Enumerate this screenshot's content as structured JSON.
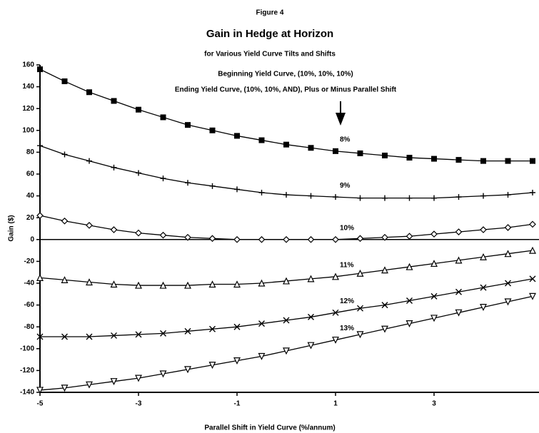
{
  "chart_data": {
    "type": "line",
    "figure_label": "Figure 4",
    "title": "Gain in Hedge at Horizon",
    "subtitle": "for Various Yield Curve Tilts and Shifts",
    "annotations": [
      "Beginning Yield Curve, (10%, 10%, 10%)",
      "Ending Yield Curve, (10%, 10%, AND), Plus or Minus Parallel Shift"
    ],
    "x_label": "Parallel Shift in Yield Curve (%/annum)",
    "y_label": "Gain ($)",
    "x": [
      -5,
      -4.5,
      -4,
      -3.5,
      -3,
      -2.5,
      -2,
      -1.5,
      -1,
      -0.5,
      0,
      0.5,
      1,
      1.5,
      2,
      2.5,
      3,
      3.5,
      4,
      4.5,
      5
    ],
    "xlim": [
      -5,
      5
    ],
    "ylim": [
      -140,
      160
    ],
    "xticks": [
      -5,
      -3,
      -1,
      1,
      3
    ],
    "yticks": [
      -140,
      -120,
      -100,
      -80,
      -60,
      -40,
      -20,
      0,
      20,
      40,
      60,
      80,
      100,
      120,
      140,
      160
    ],
    "series": [
      {
        "name": "8%",
        "color": "#000000",
        "marker": "square",
        "values": [
          156,
          145,
          135,
          127,
          119,
          112,
          105,
          100,
          95,
          91,
          87,
          84,
          81,
          79,
          77,
          75,
          74,
          73,
          72,
          72,
          72
        ]
      },
      {
        "name": "9%",
        "color": "#000000",
        "marker": "plus",
        "values": [
          86,
          78,
          72,
          66,
          61,
          56,
          52,
          49,
          46,
          43,
          41,
          40,
          39,
          38,
          38,
          38,
          38,
          39,
          40,
          41,
          43
        ]
      },
      {
        "name": "10%",
        "color": "#000000",
        "marker": "diamond",
        "values": [
          22,
          17,
          13,
          9,
          6,
          4,
          2,
          1,
          0,
          0,
          0,
          0,
          0,
          1,
          2,
          3,
          5,
          7,
          9,
          11,
          14
        ]
      },
      {
        "name": "11%",
        "color": "#000000",
        "marker": "triangle",
        "values": [
          -35,
          -37,
          -39,
          -41,
          -42,
          -42,
          -42,
          -41,
          -41,
          -40,
          -38,
          -36,
          -34,
          -31,
          -28,
          -25,
          -22,
          -19,
          -16,
          -13,
          -10
        ]
      },
      {
        "name": "12%",
        "color": "#000000",
        "marker": "x",
        "values": [
          -89,
          -89,
          -89,
          -88,
          -87,
          -86,
          -84,
          -82,
          -80,
          -77,
          -74,
          -71,
          -67,
          -63,
          -60,
          -56,
          -52,
          -48,
          -44,
          -40,
          -36
        ]
      },
      {
        "name": "13%",
        "color": "#000000",
        "marker": "triangle-down",
        "values": [
          -138,
          -136,
          -133,
          -130,
          -127,
          -123,
          -119,
          -115,
          -111,
          -107,
          -102,
          -97,
          -92,
          -87,
          -82,
          -77,
          -72,
          -67,
          -62,
          -57,
          -52
        ]
      }
    ]
  }
}
